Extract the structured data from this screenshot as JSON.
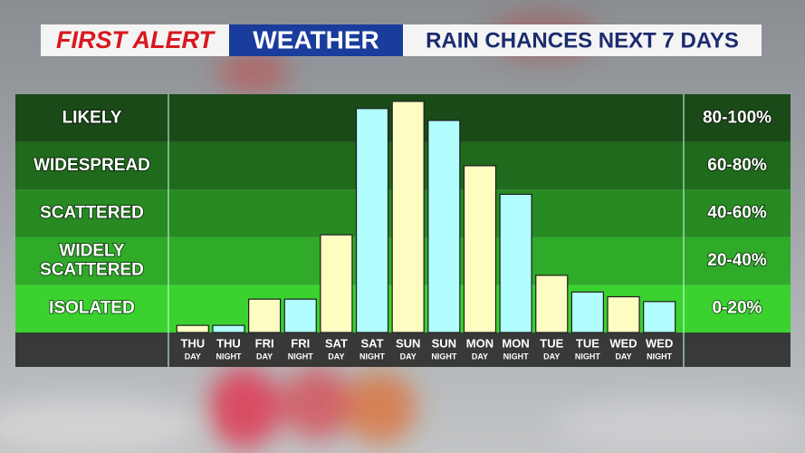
{
  "chart_data": {
    "type": "bar",
    "title": {
      "brand": "FIRST ALERT",
      "segment": "WEATHER",
      "topic": "RAIN CHANCES NEXT 7 DAYS"
    },
    "categories": [
      [
        "THU",
        "DAY"
      ],
      [
        "THU",
        "NIGHT"
      ],
      [
        "FRI",
        "DAY"
      ],
      [
        "FRI",
        "NIGHT"
      ],
      [
        "SAT",
        "DAY"
      ],
      [
        "SAT",
        "NIGHT"
      ],
      [
        "SUN",
        "DAY"
      ],
      [
        "SUN",
        "NIGHT"
      ],
      [
        "MON",
        "DAY"
      ],
      [
        "MON",
        "NIGHT"
      ],
      [
        "TUE",
        "DAY"
      ],
      [
        "TUE",
        "NIGHT"
      ],
      [
        "WED",
        "DAY"
      ],
      [
        "WED",
        "NIGHT"
      ]
    ],
    "values": [
      3,
      3,
      14,
      14,
      41,
      94,
      97,
      89,
      70,
      58,
      24,
      17,
      15,
      13
    ],
    "bar_colors": [
      "#fdfdc2",
      "#b2fdfd",
      "#fdfdc2",
      "#b2fdfd",
      "#fdfdc2",
      "#b2fdfd",
      "#fdfdc2",
      "#b2fdfd",
      "#fdfdc2",
      "#b2fdfd",
      "#fdfdc2",
      "#b2fdfd",
      "#fdfdc2",
      "#b2fdfd"
    ],
    "ylim": [
      0,
      100
    ],
    "bands": [
      {
        "label": [
          "LIKELY"
        ],
        "range_label": "80-100%",
        "from": 80,
        "to": 100,
        "color": "#1a4a18"
      },
      {
        "label": [
          "WIDESPREAD"
        ],
        "range_label": "60-80%",
        "from": 60,
        "to": 80,
        "color": "#1f6a1c"
      },
      {
        "label": [
          "SCATTERED"
        ],
        "range_label": "40-60%",
        "from": 40,
        "to": 60,
        "color": "#288a23"
      },
      {
        "label": [
          "WIDELY",
          "SCATTERED"
        ],
        "range_label": "20-40%",
        "from": 20,
        "to": 40,
        "color": "#30aa29"
      },
      {
        "label": [
          "ISOLATED"
        ],
        "range_label": "0-20%",
        "from": 0,
        "to": 20,
        "color": "#3bd230"
      }
    ]
  }
}
